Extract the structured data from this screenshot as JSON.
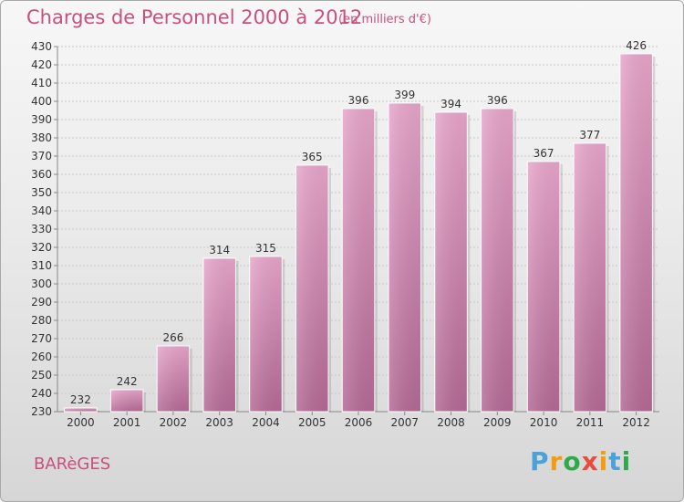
{
  "chart_data": {
    "type": "bar",
    "title": "Charges de Personnel 2000 à 2012",
    "subtitle": "(en milliers d'€)",
    "categories": [
      "2000",
      "2001",
      "2002",
      "2003",
      "2004",
      "2005",
      "2006",
      "2007",
      "2008",
      "2009",
      "2010",
      "2011",
      "2012"
    ],
    "values": [
      232,
      242,
      266,
      314,
      315,
      365,
      396,
      399,
      394,
      396,
      367,
      377,
      426
    ],
    "ylim": [
      230,
      430
    ],
    "ytick_step": 10,
    "grid": true,
    "bar_color": "#d98ab5",
    "data_labels": true
  },
  "footer": {
    "commune": "BARèGES",
    "brand_letters": [
      "P",
      "r",
      "o",
      "x",
      "i",
      "t",
      "i"
    ],
    "brand_colors": [
      "#4aa3d8",
      "#f39c12",
      "#2eaa4a",
      "#e84c3d",
      "#f39c12",
      "#4aa3d8",
      "#2eaa4a"
    ]
  }
}
